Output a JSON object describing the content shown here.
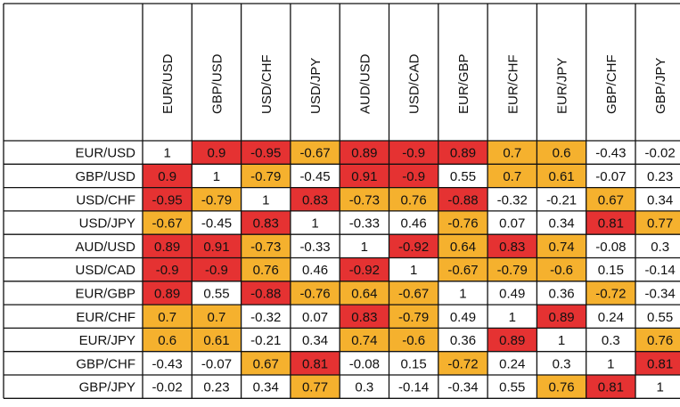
{
  "chart_data": {
    "type": "heatmap",
    "title": "",
    "rows": [
      "EUR/USD",
      "GBP/USD",
      "USD/CHF",
      "USD/JPY",
      "AUD/USD",
      "USD/CAD",
      "EUR/GBP",
      "EUR/CHF",
      "EUR/JPY",
      "GBP/CHF",
      "GBP/JPY"
    ],
    "columns": [
      "EUR/USD",
      "GBP/USD",
      "USD/CHF",
      "USD/JPY",
      "AUD/USD",
      "USD/CAD",
      "EUR/GBP",
      "EUR/CHF",
      "EUR/JPY",
      "GBP/CHF",
      "GBP/JPY"
    ],
    "values": [
      [
        "1",
        "0.9",
        "-0.95",
        "-0.67",
        "0.89",
        "-0.9",
        "0.89",
        "0.7",
        "0.6",
        "-0.43",
        "-0.02"
      ],
      [
        "0.9",
        "1",
        "-0.79",
        "-0.45",
        "0.91",
        "-0.9",
        "0.55",
        "0.7",
        "0.61",
        "-0.07",
        "0.23"
      ],
      [
        "-0.95",
        "-0.79",
        "1",
        "0.83",
        "-0.73",
        "0.76",
        "-0.88",
        "-0.32",
        "-0.21",
        "0.67",
        "0.34"
      ],
      [
        "-0.67",
        "-0.45",
        "0.83",
        "1",
        "-0.33",
        "0.46",
        "-0.76",
        "0.07",
        "0.34",
        "0.81",
        "0.77"
      ],
      [
        "0.89",
        "0.91",
        "-0.73",
        "-0.33",
        "1",
        "-0.92",
        "0.64",
        "0.83",
        "0.74",
        "-0.08",
        "0.3"
      ],
      [
        "-0.9",
        "-0.9",
        "0.76",
        "0.46",
        "-0.92",
        "1",
        "-0.67",
        "-0.79",
        "-0.6",
        "0.15",
        "-0.14"
      ],
      [
        "0.89",
        "0.55",
        "-0.88",
        "-0.76",
        "0.64",
        "-0.67",
        "1",
        "0.49",
        "0.36",
        "-0.72",
        "-0.34"
      ],
      [
        "0.7",
        "0.7",
        "-0.32",
        "0.07",
        "0.83",
        "-0.79",
        "0.49",
        "1",
        "0.89",
        "0.24",
        "0.55"
      ],
      [
        "0.6",
        "0.61",
        "-0.21",
        "0.34",
        "0.74",
        "-0.6",
        "0.36",
        "0.89",
        "1",
        "0.3",
        "0.76"
      ],
      [
        "-0.43",
        "-0.07",
        "0.67",
        "0.81",
        "-0.08",
        "0.15",
        "-0.72",
        "0.24",
        "0.3",
        "1",
        "0.81"
      ],
      [
        "-0.02",
        "0.23",
        "0.34",
        "0.77",
        "0.3",
        "-0.14",
        "-0.34",
        "0.55",
        "0.76",
        "0.81",
        "1"
      ]
    ],
    "colors": {
      "strong": "#e53232",
      "moderate": "#f5b12e",
      "weak": "#ffffff",
      "grid": "#111111"
    },
    "color_rule": "abs >= 0.8 strong, 0.6 <= abs < 0.8 moderate, otherwise weak; diagonal weak"
  }
}
